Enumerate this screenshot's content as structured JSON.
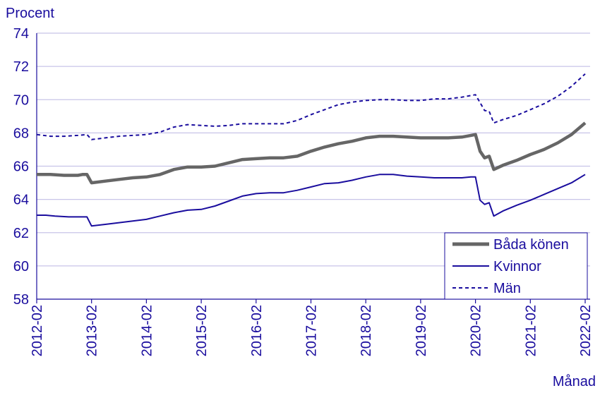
{
  "chart_data": {
    "type": "line",
    "ylabel": "Procent",
    "xlabel": "Månad",
    "ylim": [
      58,
      74
    ],
    "yticks": [
      58,
      60,
      62,
      64,
      66,
      68,
      70,
      72,
      74
    ],
    "grid": "horizontal",
    "legend_position": "bottom-right",
    "x_tick_labels": [
      "2012-02",
      "2013-02",
      "2014-02",
      "2015-02",
      "2016-02",
      "2017-02",
      "2018-02",
      "2019-02",
      "2020-02",
      "2021-02",
      "2022-02"
    ],
    "x_start": "2012-02",
    "x_end": "2022-02",
    "colors": {
      "axis": "#1a0d9e",
      "grid": "#c8c4e8"
    },
    "series": [
      {
        "name": "Båda könen",
        "color": "#666666",
        "style": "solid-thick",
        "points": [
          [
            "2012-02",
            65.5
          ],
          [
            "2012-05",
            65.5
          ],
          [
            "2012-08",
            65.45
          ],
          [
            "2012-11",
            65.45
          ],
          [
            "2012-12",
            65.5
          ],
          [
            "2013-01",
            65.5
          ],
          [
            "2013-02",
            65.0
          ],
          [
            "2013-05",
            65.1
          ],
          [
            "2013-08",
            65.2
          ],
          [
            "2013-11",
            65.3
          ],
          [
            "2014-02",
            65.35
          ],
          [
            "2014-05",
            65.5
          ],
          [
            "2014-08",
            65.8
          ],
          [
            "2014-11",
            65.95
          ],
          [
            "2015-02",
            65.95
          ],
          [
            "2015-05",
            66.0
          ],
          [
            "2015-08",
            66.2
          ],
          [
            "2015-11",
            66.4
          ],
          [
            "2016-02",
            66.45
          ],
          [
            "2016-05",
            66.5
          ],
          [
            "2016-08",
            66.5
          ],
          [
            "2016-11",
            66.6
          ],
          [
            "2017-02",
            66.9
          ],
          [
            "2017-05",
            67.15
          ],
          [
            "2017-08",
            67.35
          ],
          [
            "2017-11",
            67.5
          ],
          [
            "2018-02",
            67.7
          ],
          [
            "2018-05",
            67.8
          ],
          [
            "2018-08",
            67.8
          ],
          [
            "2018-11",
            67.75
          ],
          [
            "2019-02",
            67.7
          ],
          [
            "2019-05",
            67.7
          ],
          [
            "2019-08",
            67.7
          ],
          [
            "2019-11",
            67.75
          ],
          [
            "2020-01",
            67.85
          ],
          [
            "2020-02",
            67.9
          ],
          [
            "2020-03",
            66.9
          ],
          [
            "2020-04",
            66.5
          ],
          [
            "2020-05",
            66.6
          ],
          [
            "2020-06",
            65.8
          ],
          [
            "2020-08",
            66.05
          ],
          [
            "2020-11",
            66.35
          ],
          [
            "2021-02",
            66.7
          ],
          [
            "2021-05",
            67.0
          ],
          [
            "2021-08",
            67.4
          ],
          [
            "2021-11",
            67.9
          ],
          [
            "2022-02",
            68.6
          ]
        ]
      },
      {
        "name": "Kvinnor",
        "color": "#1a0d9e",
        "style": "solid",
        "points": [
          [
            "2012-02",
            63.05
          ],
          [
            "2012-04",
            63.05
          ],
          [
            "2012-06",
            63.0
          ],
          [
            "2012-09",
            62.95
          ],
          [
            "2013-01",
            62.95
          ],
          [
            "2013-02",
            62.4
          ],
          [
            "2013-05",
            62.5
          ],
          [
            "2013-08",
            62.6
          ],
          [
            "2013-11",
            62.7
          ],
          [
            "2014-02",
            62.8
          ],
          [
            "2014-05",
            63.0
          ],
          [
            "2014-08",
            63.2
          ],
          [
            "2014-11",
            63.35
          ],
          [
            "2015-02",
            63.4
          ],
          [
            "2015-05",
            63.6
          ],
          [
            "2015-08",
            63.9
          ],
          [
            "2015-11",
            64.2
          ],
          [
            "2016-02",
            64.35
          ],
          [
            "2016-05",
            64.4
          ],
          [
            "2016-08",
            64.4
          ],
          [
            "2016-11",
            64.55
          ],
          [
            "2017-02",
            64.75
          ],
          [
            "2017-05",
            64.95
          ],
          [
            "2017-08",
            65.0
          ],
          [
            "2017-11",
            65.15
          ],
          [
            "2018-02",
            65.35
          ],
          [
            "2018-05",
            65.5
          ],
          [
            "2018-08",
            65.5
          ],
          [
            "2018-11",
            65.4
          ],
          [
            "2019-02",
            65.35
          ],
          [
            "2019-05",
            65.3
          ],
          [
            "2019-08",
            65.3
          ],
          [
            "2019-11",
            65.3
          ],
          [
            "2020-01",
            65.35
          ],
          [
            "2020-02",
            65.35
          ],
          [
            "2020-03",
            63.95
          ],
          [
            "2020-04",
            63.7
          ],
          [
            "2020-05",
            63.8
          ],
          [
            "2020-06",
            63.0
          ],
          [
            "2020-08",
            63.3
          ],
          [
            "2020-11",
            63.65
          ],
          [
            "2021-02",
            63.95
          ],
          [
            "2021-05",
            64.3
          ],
          [
            "2021-08",
            64.65
          ],
          [
            "2021-11",
            65.0
          ],
          [
            "2022-02",
            65.5
          ]
        ]
      },
      {
        "name": "Män",
        "color": "#1a0d9e",
        "style": "dashed",
        "points": [
          [
            "2012-02",
            67.9
          ],
          [
            "2012-05",
            67.8
          ],
          [
            "2012-08",
            67.8
          ],
          [
            "2012-11",
            67.85
          ],
          [
            "2013-01",
            67.9
          ],
          [
            "2013-02",
            67.6
          ],
          [
            "2013-05",
            67.7
          ],
          [
            "2013-08",
            67.8
          ],
          [
            "2013-11",
            67.85
          ],
          [
            "2014-02",
            67.9
          ],
          [
            "2014-05",
            68.05
          ],
          [
            "2014-08",
            68.35
          ],
          [
            "2014-11",
            68.5
          ],
          [
            "2015-02",
            68.45
          ],
          [
            "2015-05",
            68.4
          ],
          [
            "2015-08",
            68.45
          ],
          [
            "2015-11",
            68.55
          ],
          [
            "2016-02",
            68.55
          ],
          [
            "2016-05",
            68.55
          ],
          [
            "2016-08",
            68.55
          ],
          [
            "2016-11",
            68.75
          ],
          [
            "2017-02",
            69.1
          ],
          [
            "2017-05",
            69.4
          ],
          [
            "2017-08",
            69.7
          ],
          [
            "2017-11",
            69.85
          ],
          [
            "2018-02",
            69.95
          ],
          [
            "2018-05",
            70.0
          ],
          [
            "2018-08",
            70.0
          ],
          [
            "2018-11",
            69.95
          ],
          [
            "2019-02",
            69.95
          ],
          [
            "2019-05",
            70.05
          ],
          [
            "2019-08",
            70.05
          ],
          [
            "2019-11",
            70.15
          ],
          [
            "2020-01",
            70.25
          ],
          [
            "2020-02",
            70.3
          ],
          [
            "2020-04",
            69.35
          ],
          [
            "2020-05",
            69.3
          ],
          [
            "2020-06",
            68.6
          ],
          [
            "2020-08",
            68.8
          ],
          [
            "2020-11",
            69.05
          ],
          [
            "2021-02",
            69.4
          ],
          [
            "2021-05",
            69.75
          ],
          [
            "2021-08",
            70.2
          ],
          [
            "2021-11",
            70.8
          ],
          [
            "2022-02",
            71.55
          ]
        ]
      }
    ]
  }
}
